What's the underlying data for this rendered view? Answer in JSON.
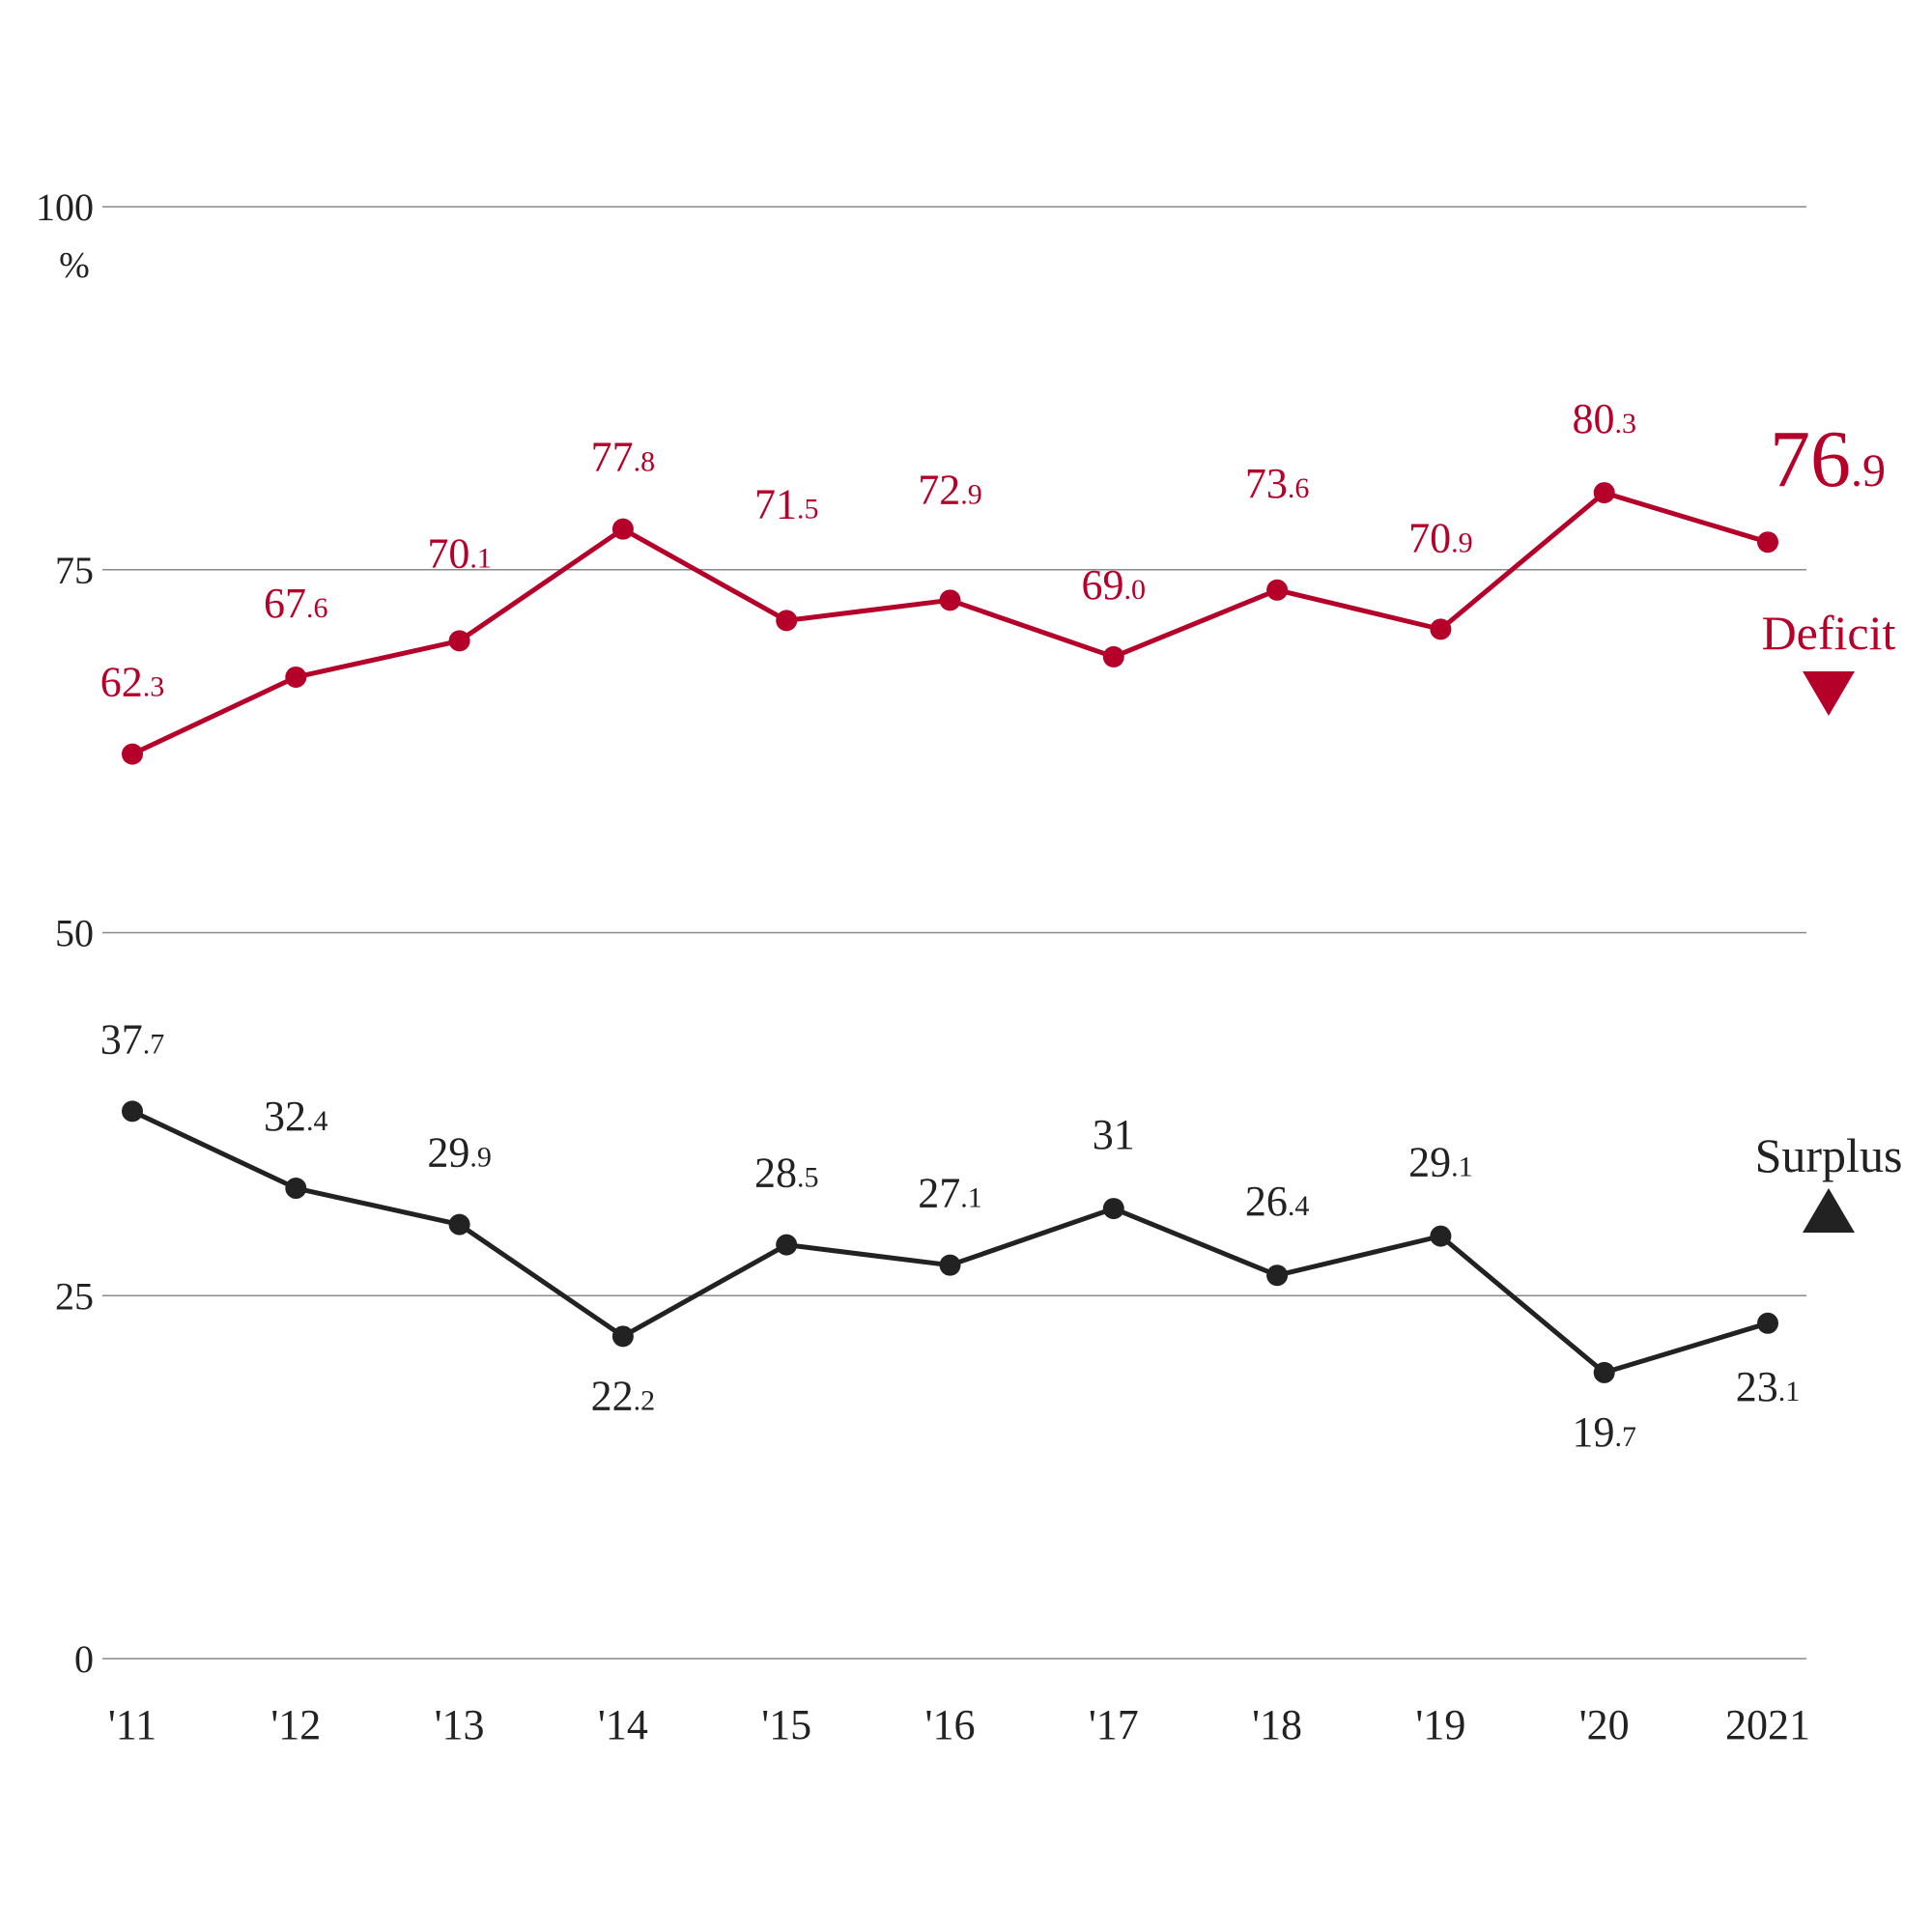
{
  "chart_data": {
    "type": "line",
    "categories": [
      "'11",
      "'12",
      "'13",
      "'14",
      "'15",
      "'16",
      "'17",
      "'18",
      "'19",
      "'20",
      "2021"
    ],
    "unit_label": "%",
    "ylim": [
      0,
      100
    ],
    "yticks": [
      0,
      25,
      50,
      75,
      100
    ],
    "grid": true,
    "series": [
      {
        "name": "Deficit",
        "marker": "down-triangle",
        "color": "#b5002a",
        "values": [
          62.3,
          67.6,
          70.1,
          77.8,
          71.5,
          72.9,
          69.0,
          73.6,
          70.9,
          80.3,
          76.9
        ],
        "labels": [
          "62.3",
          "67.6",
          "70.1",
          "77.8",
          "71.5",
          "72.9",
          "69.0",
          "73.6",
          "70.9",
          "80.3",
          "76.9"
        ]
      },
      {
        "name": "Surplus",
        "marker": "up-triangle",
        "color": "#222222",
        "values": [
          37.7,
          32.4,
          29.9,
          22.2,
          28.5,
          27.1,
          31,
          26.4,
          29.1,
          19.7,
          23.1
        ],
        "labels": [
          "37.7",
          "32.4",
          "29.9",
          "22.2",
          "28.5",
          "27.1",
          "31",
          "26.4",
          "29.1",
          "19.7",
          "23.1"
        ]
      }
    ]
  }
}
